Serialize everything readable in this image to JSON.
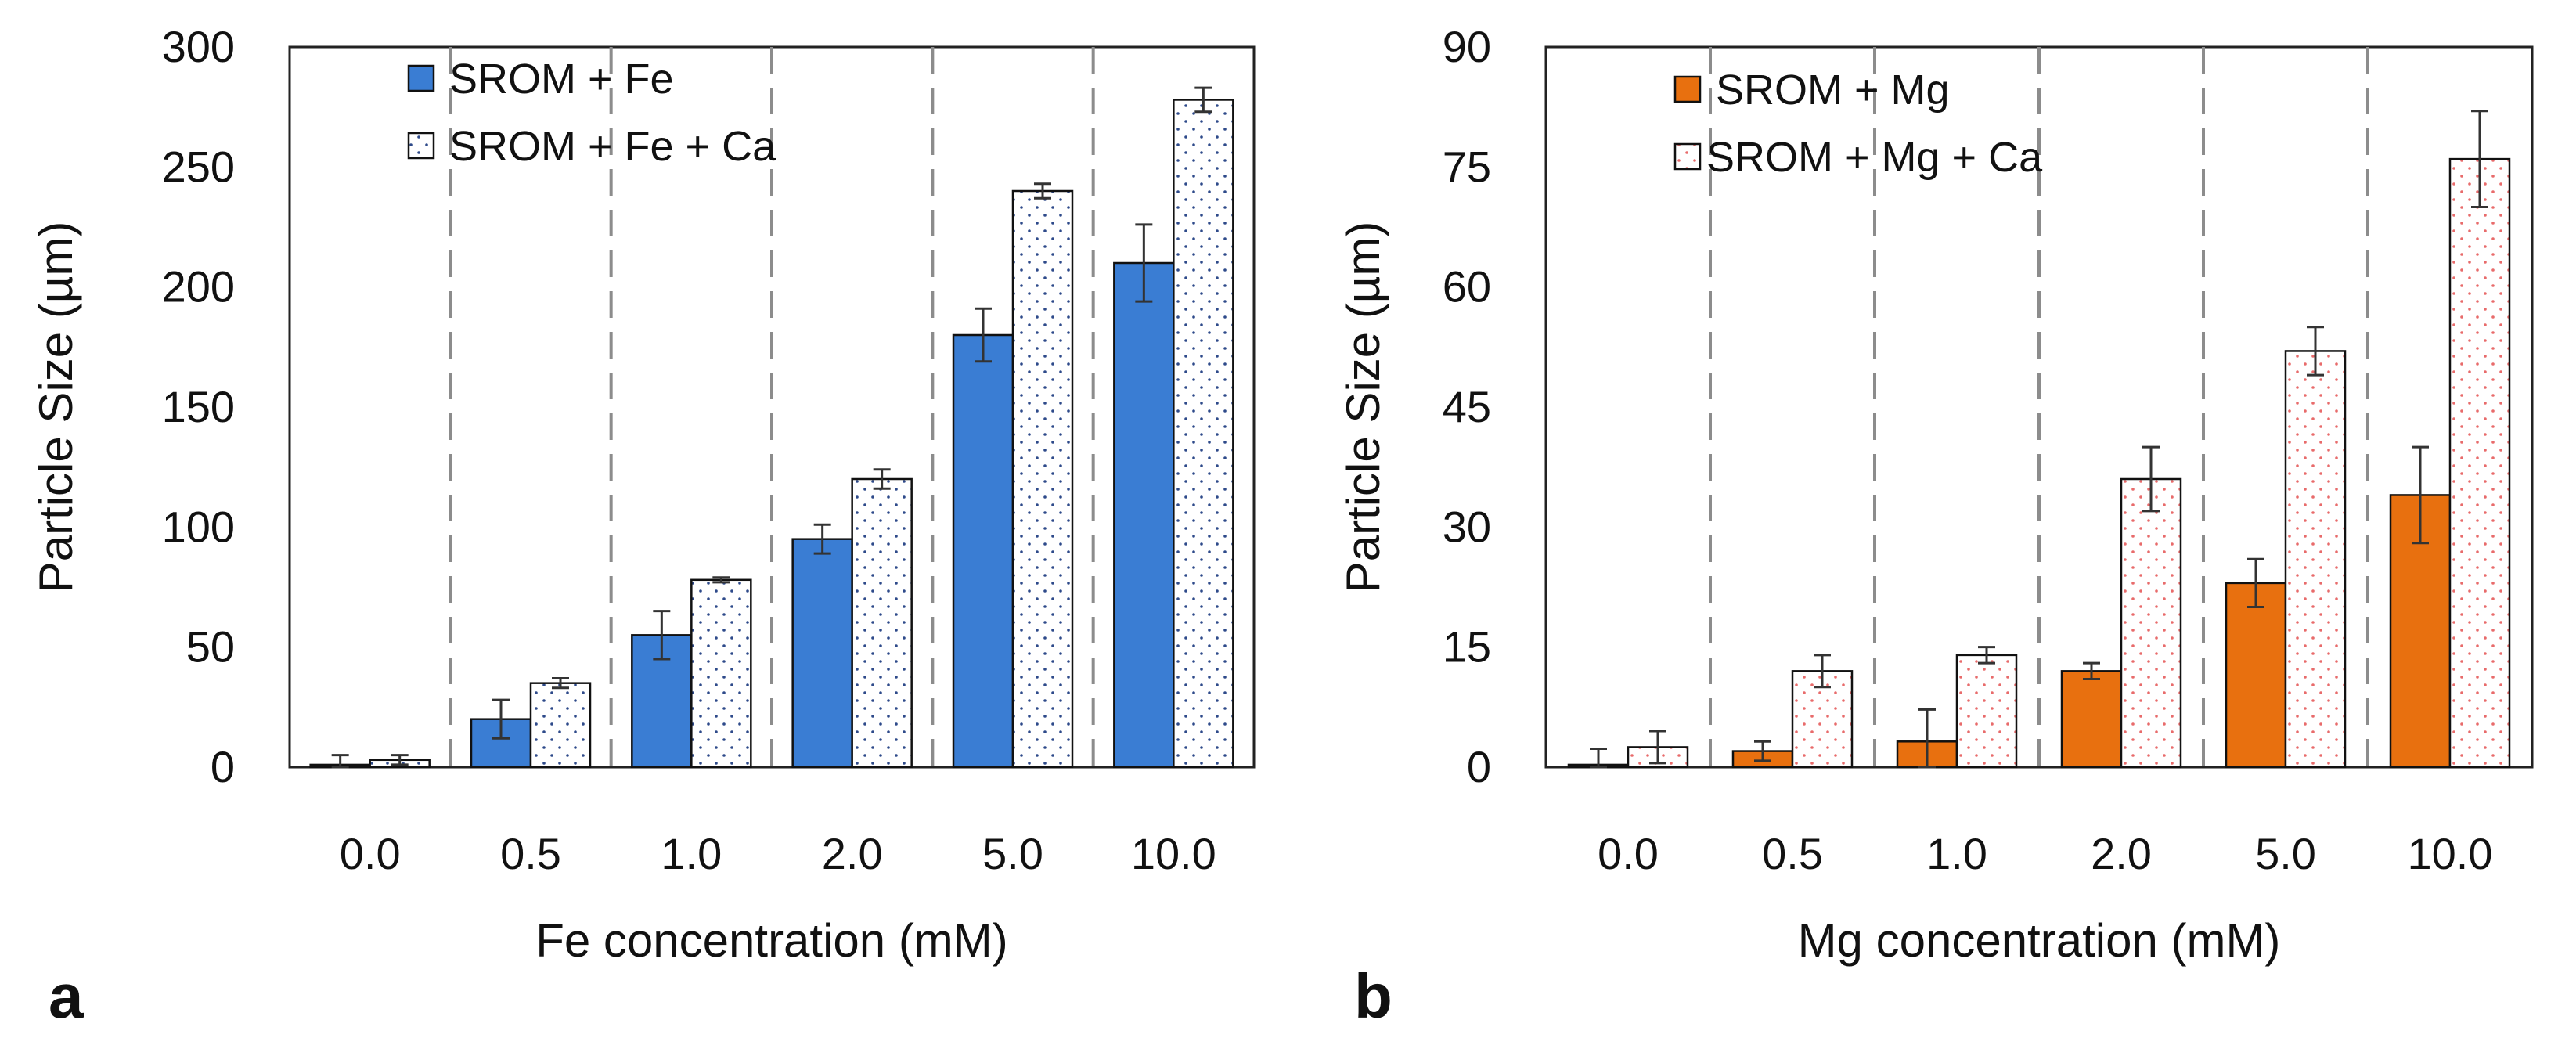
{
  "chart_data": [
    {
      "type": "bar",
      "panel_label": "a",
      "xlabel": "Fe concentration (mM)",
      "ylabel": "Particle Size (µm)",
      "ylim": [
        0,
        300
      ],
      "yticks": [
        "0",
        "50",
        "100",
        "150",
        "200",
        "250",
        "300"
      ],
      "categories": [
        "0.0",
        "0.5",
        "1.0",
        "2.0",
        "5.0",
        "10.0"
      ],
      "series": [
        {
          "name": "SROM + Fe",
          "fill": "solid",
          "color": "#3a7dd3",
          "values": [
            1,
            20,
            55,
            95,
            180,
            210
          ],
          "errors": [
            4,
            8,
            10,
            6,
            11,
            16
          ]
        },
        {
          "name": "SROM + Fe + Ca",
          "fill": "dotted",
          "color": "#ffffff",
          "dot_color": "#2e4a8a",
          "values": [
            3,
            35,
            78,
            120,
            240,
            278
          ],
          "errors": [
            2,
            2,
            1,
            4,
            3,
            5
          ]
        }
      ],
      "separators": "dashed",
      "legend_position": "top-left"
    },
    {
      "type": "bar",
      "panel_label": "b",
      "xlabel": "Mg concentration (mM)",
      "ylabel": "Particle Size (µm)",
      "ylim": [
        0,
        90
      ],
      "yticks": [
        "0",
        "15",
        "30",
        "45",
        "60",
        "75",
        "90"
      ],
      "categories": [
        "0.0",
        "0.5",
        "1.0",
        "2.0",
        "5.0",
        "10.0"
      ],
      "series": [
        {
          "name": "SROM + Mg",
          "fill": "solid",
          "color": "#e8700f",
          "values": [
            0.3,
            2,
            3.2,
            12,
            23,
            34
          ],
          "errors": [
            2,
            1.2,
            4,
            1,
            3,
            6
          ]
        },
        {
          "name": "SROM + Mg + Ca",
          "fill": "dotted",
          "color": "#ffffff",
          "dot_color": "#e86b6b",
          "values": [
            2.5,
            12,
            14,
            36,
            52,
            76
          ],
          "errors": [
            2,
            2,
            1,
            4,
            3,
            6
          ]
        }
      ],
      "separators": "dashed",
      "legend_position": "top-left"
    }
  ]
}
